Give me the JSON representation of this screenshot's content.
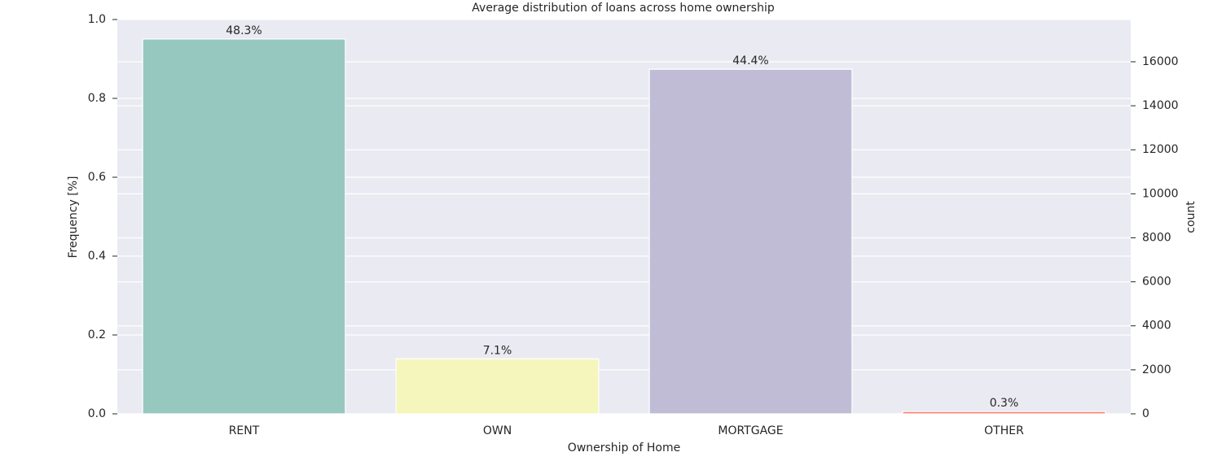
{
  "chart_data": {
    "type": "bar",
    "title": "Average distribution of loans across home ownership",
    "xlabel": "Ownership of Home",
    "ylabel": "Frequency [%]",
    "y2label": "count",
    "categories": [
      "RENT",
      "OWN",
      "MORTGAGE",
      "OTHER"
    ],
    "series": [
      {
        "axis": "y2",
        "values": [
          17035,
          2500,
          15660,
          106
        ],
        "colors": [
          "#96c8bf",
          "#f5f6bb",
          "#c1bcd6",
          "#fb8072"
        ]
      }
    ],
    "annotations": [
      "48.3%",
      "7.1%",
      "44.4%",
      "0.3%"
    ],
    "ylim": [
      0,
      1.0
    ],
    "yticks": [
      {
        "value": 0,
        "label": "0.0"
      },
      {
        "value": 0.2,
        "label": "0.2"
      },
      {
        "value": 0.4,
        "label": "0.4"
      },
      {
        "value": 0.6,
        "label": "0.6"
      },
      {
        "value": 0.8,
        "label": "0.8"
      },
      {
        "value": 1.0,
        "label": "1.0"
      }
    ],
    "y2lim": [
      0,
      17920
    ],
    "y2ticks": [
      0,
      2000,
      4000,
      6000,
      8000,
      10000,
      12000,
      14000,
      16000
    ],
    "grid": true
  }
}
